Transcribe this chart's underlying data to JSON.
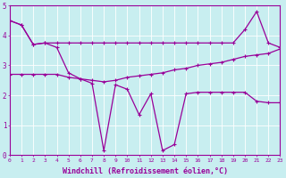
{
  "xlabel": "Windchill (Refroidissement éolien,°C)",
  "background_color": "#c8eef0",
  "line_color": "#990099",
  "grid_color": "#ffffff",
  "x": [
    0,
    1,
    2,
    3,
    4,
    5,
    6,
    7,
    8,
    9,
    10,
    11,
    12,
    13,
    14,
    15,
    16,
    17,
    18,
    19,
    20,
    21,
    22,
    23
  ],
  "series1": [
    4.5,
    4.35,
    3.7,
    3.75,
    3.75,
    3.75,
    3.75,
    3.75,
    3.75,
    3.75,
    3.75,
    3.75,
    3.75,
    3.75,
    3.75,
    3.75,
    3.75,
    3.75,
    3.75,
    3.75,
    4.2,
    4.8,
    3.75,
    3.6
  ],
  "series2": [
    4.5,
    4.35,
    3.7,
    3.75,
    3.6,
    2.75,
    2.55,
    2.4,
    0.15,
    2.35,
    2.2,
    1.35,
    2.05,
    0.15,
    0.35,
    2.05,
    2.1,
    2.1,
    2.1,
    2.1,
    2.1,
    1.8,
    1.75,
    1.75
  ],
  "series3": [
    2.7,
    2.7,
    2.7,
    2.7,
    2.7,
    2.6,
    2.55,
    2.5,
    2.45,
    2.5,
    2.6,
    2.65,
    2.7,
    2.75,
    2.85,
    2.9,
    3.0,
    3.05,
    3.1,
    3.2,
    3.3,
    3.35,
    3.4,
    3.55
  ],
  "xlim": [
    0,
    23
  ],
  "ylim": [
    0,
    5
  ],
  "xtick_fontsize": 4.5,
  "ytick_fontsize": 5.5,
  "xlabel_fontsize": 6.0
}
